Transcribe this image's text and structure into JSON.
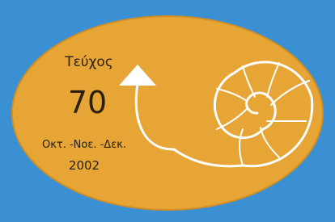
{
  "cover": {
    "label": "Τεύχος",
    "number": "70",
    "months": "Οκτ. -Νοε. -Δεκ.",
    "year": "2002"
  }
}
